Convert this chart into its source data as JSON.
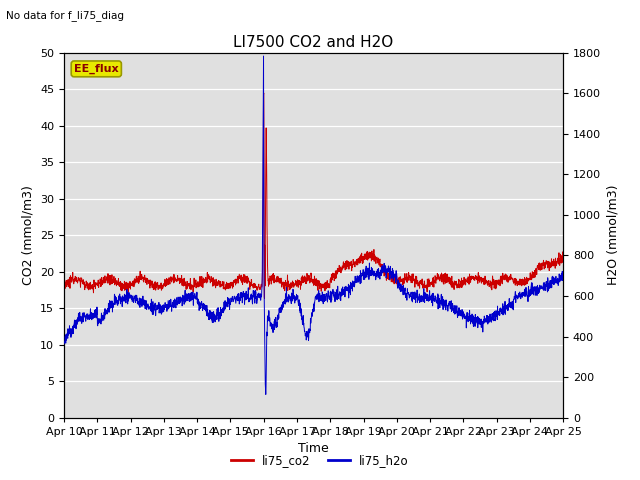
{
  "title": "LI7500 CO2 and H2O",
  "top_left_text": "No data for f_li75_diag",
  "xlabel": "Time",
  "ylabel_left": "CO2 (mmol/m3)",
  "ylabel_right": "H2O (mmol/m3)",
  "ylim_left": [
    0,
    50
  ],
  "ylim_right": [
    0,
    1800
  ],
  "xlim": [
    0,
    15
  ],
  "xtick_labels": [
    "Apr 10",
    "Apr 11",
    "Apr 12",
    "Apr 13",
    "Apr 14",
    "Apr 15",
    "Apr 16",
    "Apr 17",
    "Apr 18",
    "Apr 19",
    "Apr 20",
    "Apr 21",
    "Apr 22",
    "Apr 23",
    "Apr 24",
    "Apr 25"
  ],
  "legend_labels": [
    "li75_co2",
    "li75_h2o"
  ],
  "co2_color": "#cc0000",
  "h2o_color": "#0000cc",
  "background_color": "#e0e0e0",
  "figure_background": "#ffffff",
  "legend_box_text": "EE_flux",
  "grid_color": "#ffffff",
  "title_fontsize": 11,
  "axis_label_fontsize": 9,
  "tick_fontsize": 8
}
